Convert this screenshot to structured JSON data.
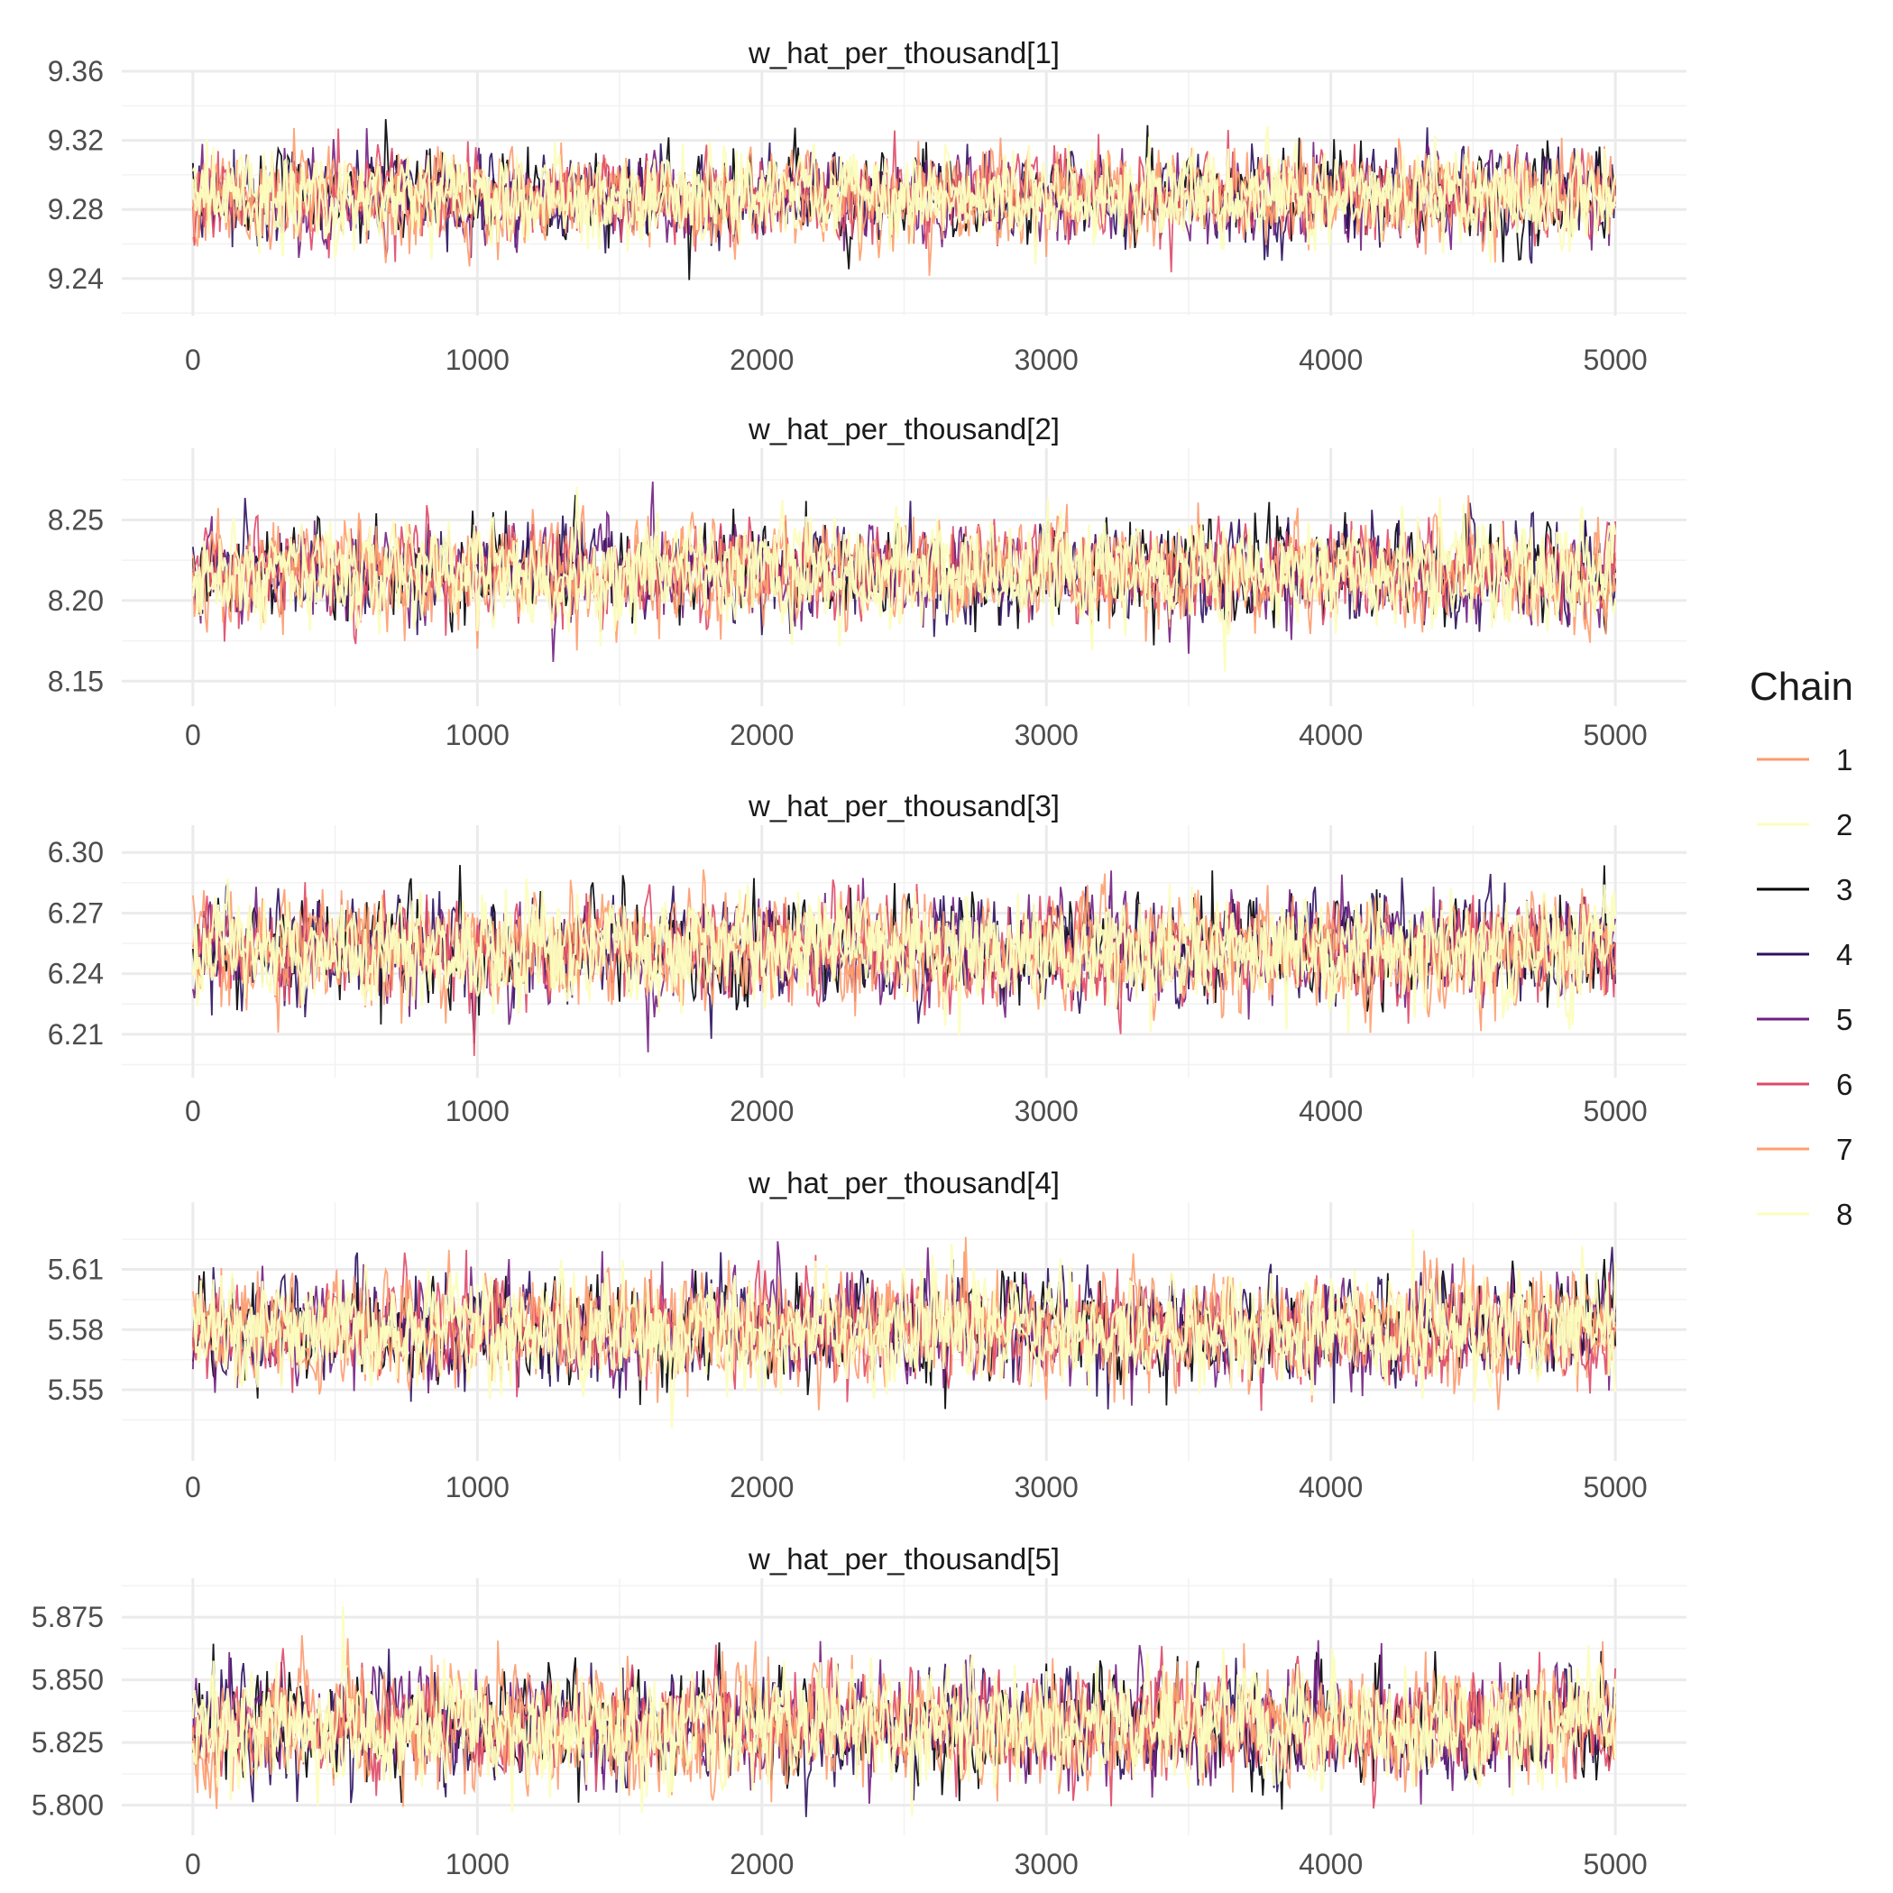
{
  "chart_data": {
    "type": "line",
    "legend": {
      "title": "Chain",
      "position": "right",
      "entries": [
        {
          "label": "1",
          "color": "#FC9A6E"
        },
        {
          "label": "2",
          "color": "#FCFDBF"
        },
        {
          "label": "3",
          "color": "#000004"
        },
        {
          "label": "4",
          "color": "#2C115F"
        },
        {
          "label": "5",
          "color": "#721F81"
        },
        {
          "label": "6",
          "color": "#DE4968"
        },
        {
          "label": "7",
          "color": "#FE9F6D"
        },
        {
          "label": "8",
          "color": "#FCFDBF"
        }
      ]
    },
    "panels": [
      {
        "title": "w_hat_per_thousand[1]",
        "xlim": [
          -250,
          5250
        ],
        "ylim": [
          9.2185,
          9.3595
        ],
        "x_ticks": [
          0,
          1000,
          2000,
          3000,
          4000,
          5000
        ],
        "x_tick_labels": [
          "0",
          "1000",
          "2000",
          "3000",
          "4000",
          "5000"
        ],
        "y_ticks": [
          9.24,
          9.28,
          9.32,
          9.36
        ],
        "y_tick_labels": [
          "9.24",
          "9.28",
          "9.32",
          "9.36"
        ],
        "center": 9.2875,
        "spread": 0.0125,
        "min": 9.219,
        "max": 9.355
      },
      {
        "title": "w_hat_per_thousand[2]",
        "xlim": [
          -250,
          5250
        ],
        "ylim": [
          8.1345,
          8.2945
        ],
        "x_ticks": [
          0,
          1000,
          2000,
          3000,
          4000,
          5000
        ],
        "x_tick_labels": [
          "0",
          "1000",
          "2000",
          "3000",
          "4000",
          "5000"
        ],
        "y_ticks": [
          8.15,
          8.2,
          8.25
        ],
        "y_tick_labels": [
          "8.15",
          "8.20",
          "8.25"
        ],
        "center": 8.2175,
        "spread": 0.0145,
        "min": 8.149,
        "max": 8.282
      },
      {
        "title": "w_hat_per_thousand[3]",
        "xlim": [
          -250,
          5250
        ],
        "ylim": [
          6.1885,
          6.3135
        ],
        "x_ticks": [
          0,
          1000,
          2000,
          3000,
          4000,
          5000
        ],
        "x_tick_labels": [
          "0",
          "1000",
          "2000",
          "3000",
          "4000",
          "5000"
        ],
        "y_ticks": [
          6.21,
          6.24,
          6.27,
          6.3
        ],
        "y_tick_labels": [
          "6.21",
          "6.24",
          "6.27",
          "6.30"
        ],
        "center": 6.2515,
        "spread": 0.0125,
        "min": 6.194,
        "max": 6.304
      },
      {
        "title": "w_hat_per_thousand[4]",
        "xlim": [
          -250,
          5250
        ],
        "ylim": [
          5.5145,
          5.6435
        ],
        "x_ticks": [
          0,
          1000,
          2000,
          3000,
          4000,
          5000
        ],
        "x_tick_labels": [
          "0",
          "1000",
          "2000",
          "3000",
          "4000",
          "5000"
        ],
        "y_ticks": [
          5.55,
          5.58,
          5.61
        ],
        "y_tick_labels": [
          "5.55",
          "5.58",
          "5.61"
        ],
        "center": 5.5795,
        "spread": 0.0125,
        "min": 5.521,
        "max": 5.634
      },
      {
        "title": "w_hat_per_thousand[5]",
        "xlim": [
          -250,
          5250
        ],
        "ylim": [
          5.788,
          5.8905
        ],
        "x_ticks": [
          0,
          1000,
          2000,
          3000,
          4000,
          5000
        ],
        "x_tick_labels": [
          "0",
          "1000",
          "2000",
          "3000",
          "4000",
          "5000"
        ],
        "y_ticks": [
          5.8,
          5.825,
          5.85,
          5.875
        ],
        "y_tick_labels": [
          "5.800",
          "5.825",
          "5.850",
          "5.875"
        ],
        "center": 5.8315,
        "spread": 0.0105,
        "min": 5.783,
        "max": 5.886
      }
    ],
    "iterations": 5000,
    "grid": true
  }
}
